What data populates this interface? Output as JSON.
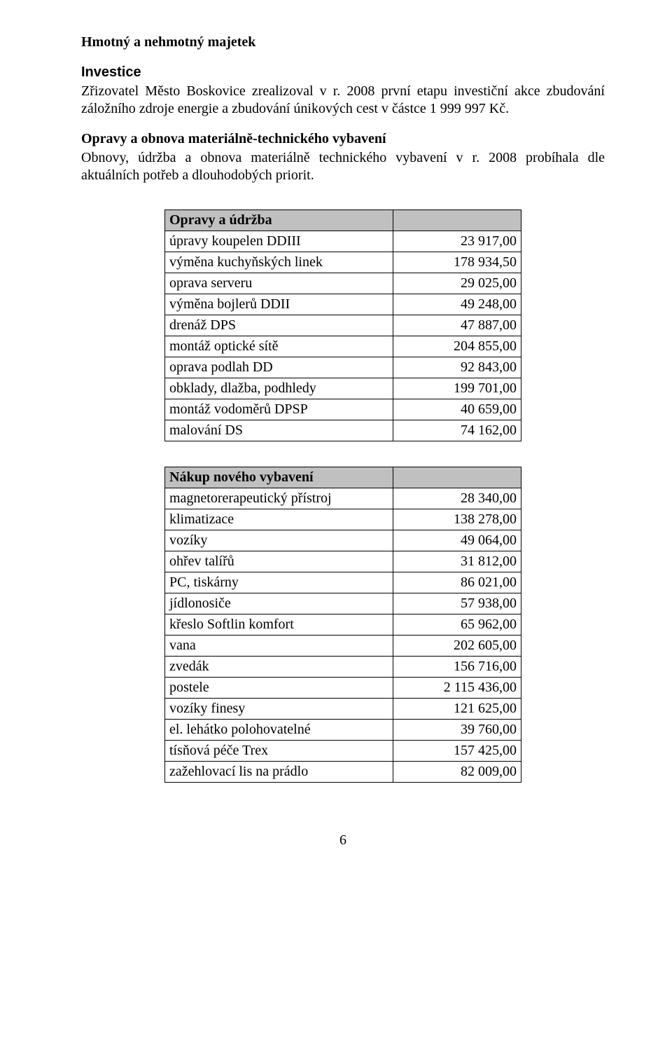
{
  "heading_main": "Hmotný a nehmotný majetek",
  "section_investice": {
    "title": "Investice",
    "para": "Zřizovatel Město Boskovice zrealizoval v r. 2008 první etapu investiční akce zbudování záložního zdroje energie a zbudování únikových cest v částce 1 999 997 Kč."
  },
  "section_opravy": {
    "title": "Opravy a obnova materiálně-technického vybavení",
    "para": "Obnovy, údržba a obnova materiálně technického vybavení v r. 2008 probíhala dle aktuálních potřeb a dlouhodobých priorit."
  },
  "table_opravy": {
    "header": "Opravy a údržba",
    "header_bg": "#c0c0c0",
    "rows": [
      {
        "label": "úpravy koupelen DDIII",
        "value": "23 917,00"
      },
      {
        "label": "výměna kuchyňských linek",
        "value": "178 934,50"
      },
      {
        "label": "oprava serveru",
        "value": "29 025,00"
      },
      {
        "label": "výměna bojlerů DDII",
        "value": "49 248,00"
      },
      {
        "label": "drenáž DPS",
        "value": "47 887,00"
      },
      {
        "label": "montáž optické sítě",
        "value": "204 855,00"
      },
      {
        "label": "oprava podlah DD",
        "value": "92 843,00"
      },
      {
        "label": "obklady, dlažba, podhledy",
        "value": "199 701,00"
      },
      {
        "label": "montáž vodoměrů DPSP",
        "value": "40 659,00"
      },
      {
        "label": "malování DS",
        "value": "74 162,00"
      }
    ]
  },
  "table_nakup": {
    "header": "Nákup nového vybavení",
    "header_bg": "#c0c0c0",
    "rows": [
      {
        "label": "magnetorerapeutický přístroj",
        "value": "28 340,00"
      },
      {
        "label": "klimatizace",
        "value": "138 278,00"
      },
      {
        "label": "vozíky",
        "value": "49 064,00"
      },
      {
        "label": "ohřev talířů",
        "value": "31 812,00"
      },
      {
        "label": "PC, tiskárny",
        "value": "86 021,00"
      },
      {
        "label": "jídlonosiče",
        "value": "57 938,00"
      },
      {
        "label": "křeslo Softlin komfort",
        "value": "65 962,00"
      },
      {
        "label": "vana",
        "value": "202 605,00"
      },
      {
        "label": "zvedák",
        "value": "156 716,00"
      },
      {
        "label": "postele",
        "value": "2 115 436,00"
      },
      {
        "label": "vozíky finesy",
        "value": "121 625,00"
      },
      {
        "label": "el. lehátko polohovatelné",
        "value": "39 760,00"
      },
      {
        "label": "tísňová péče Trex",
        "value": "157 425,00"
      },
      {
        "label": "zažehlovací lis na prádlo",
        "value": "82 009,00"
      }
    ]
  },
  "page_number": "6"
}
